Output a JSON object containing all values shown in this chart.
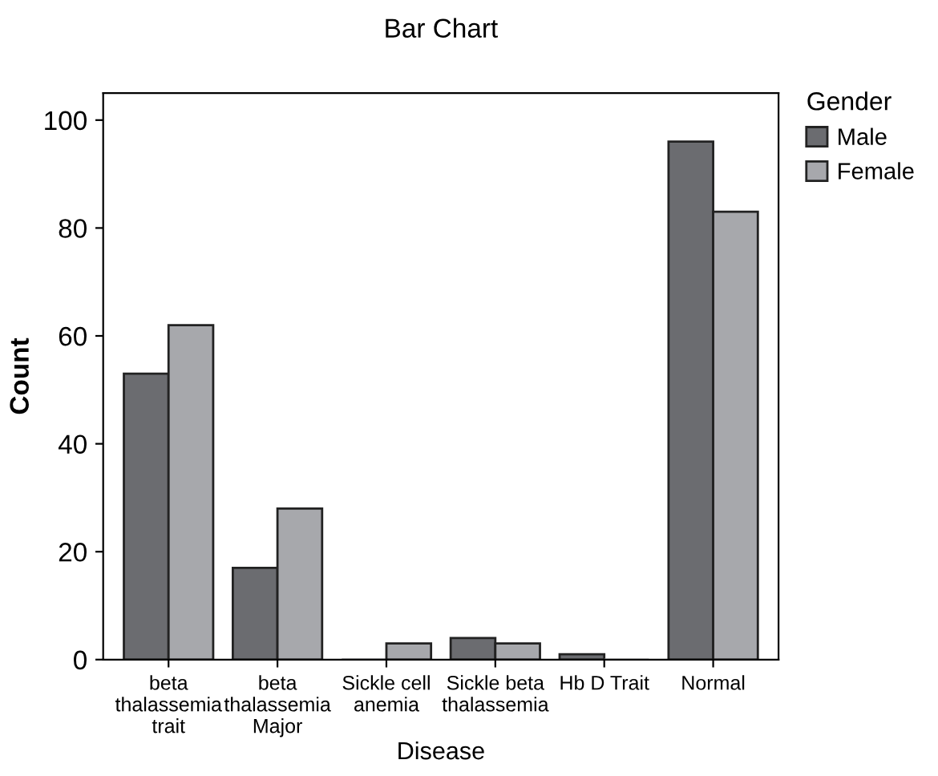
{
  "chart_data": {
    "type": "bar",
    "title": "Bar Chart",
    "xlabel": "Disease",
    "ylabel": "Count",
    "legend_title": "Gender",
    "categories": [
      "beta\nthalassemia\ntrait",
      "beta\nthalassemia\nMajor",
      "Sickle cell\nanemia",
      "Sickle beta\nthalassemia",
      "Hb D Trait",
      "Normal"
    ],
    "series": [
      {
        "name": "Male",
        "color": "#6b6c70",
        "values": [
          53,
          17,
          0,
          4,
          1,
          96
        ]
      },
      {
        "name": "Female",
        "color": "#a7a8ac",
        "values": [
          62,
          28,
          3,
          3,
          0,
          83
        ]
      }
    ],
    "ylim": [
      0,
      105
    ],
    "yticks": [
      0,
      20,
      40,
      60,
      80,
      100
    ],
    "grid": false,
    "legend": "top right"
  }
}
